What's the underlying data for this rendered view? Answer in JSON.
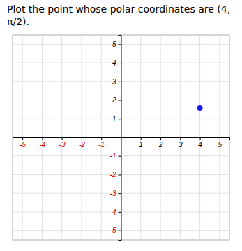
{
  "chart_data": {
    "type": "scatter",
    "title": "Plot the point whose polar coordinates are (4, π/2).",
    "x": [
      4.0
    ],
    "values": [
      1.5707963267948966
    ],
    "color": "#1a1aff",
    "xlim": [
      -5.5,
      5.5
    ],
    "ylim": [
      -5.5,
      5.5
    ],
    "xticks": [
      -5,
      -4,
      -3,
      -2,
      -1,
      1,
      2,
      3,
      4,
      5
    ],
    "yticks": [
      -5,
      -4,
      -3,
      -2,
      -1,
      1,
      2,
      3,
      4,
      5
    ],
    "grid": true
  }
}
